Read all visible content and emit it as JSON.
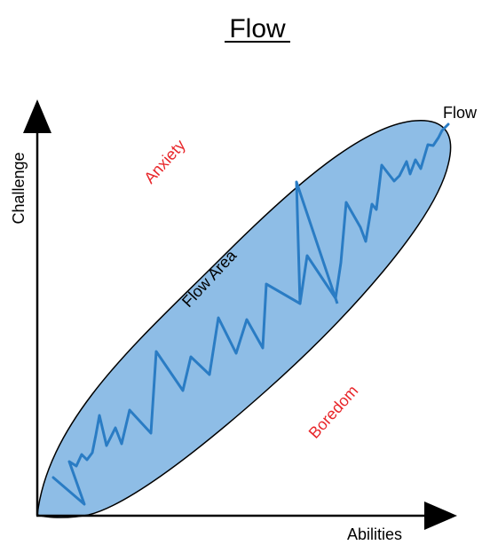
{
  "title": "Flow",
  "axes": {
    "y_label": "Challenge",
    "x_label": "Abilities"
  },
  "regions": {
    "anxiety": "Anxiety",
    "boredom": "Boredom",
    "flow_area": "Flow Area",
    "flow_line_label": "Flow"
  },
  "colors": {
    "ellipse_fill": "#8ebde6",
    "flow_line": "#2a7cc4",
    "region_text": "#e8262a",
    "ink": "#000000"
  }
}
